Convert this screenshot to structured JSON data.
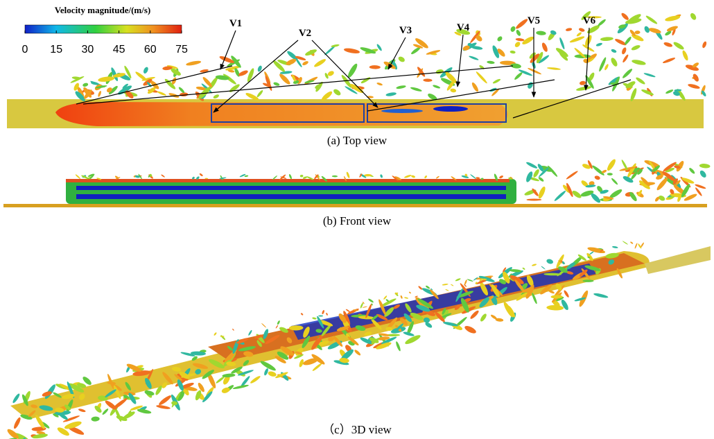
{
  "colorbar": {
    "title": "Velocity magnitude/(m/s)",
    "lim": [
      0,
      75
    ],
    "ticks": [
      0,
      15,
      30,
      45,
      60,
      75
    ]
  },
  "labels": [
    "V1",
    "V2",
    "V3",
    "V4",
    "V5",
    "V6"
  ],
  "captions": [
    "(a) Top view",
    "(b) Front view",
    "（c）3D view"
  ]
}
